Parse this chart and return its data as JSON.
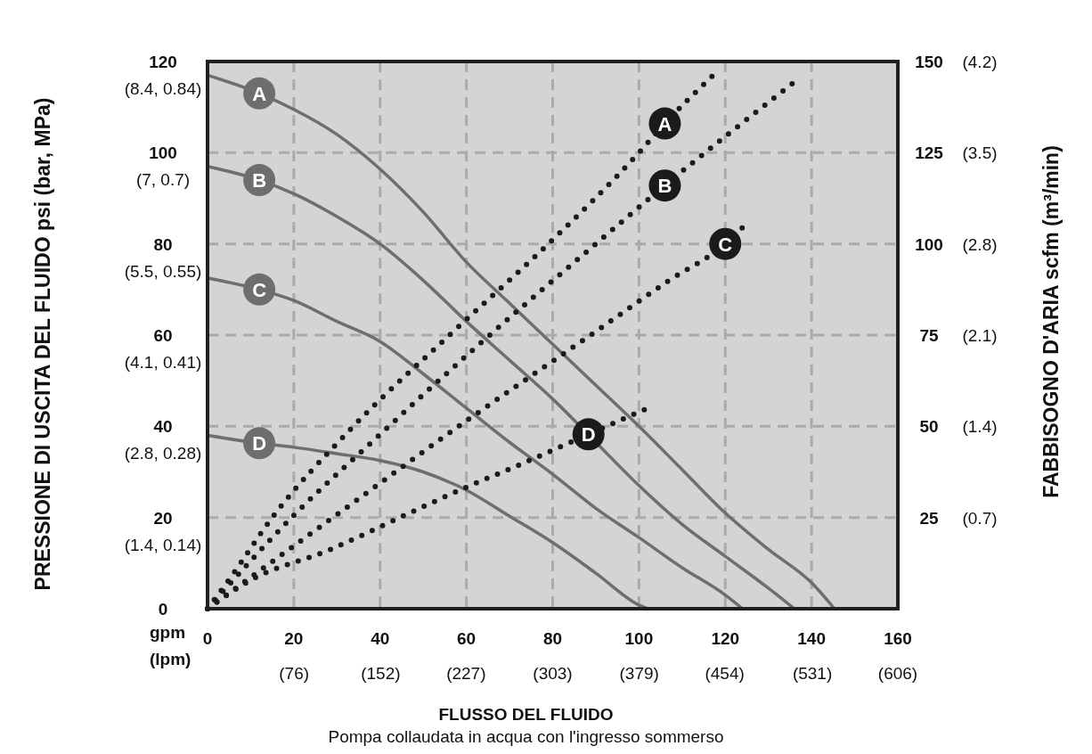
{
  "chart_data": {
    "type": "line",
    "xlabel": "FLUSSO DEL FLUIDO",
    "ylabel": "PRESSIONE DI USCITA DEL FLUIDO psi (bar, MPa)",
    "y2label": "FABBISOGNO D'ARIA scfm (m³/min)",
    "annotations": [
      "Pompa collaudata in acqua con l'ingresso sommerso",
      "gpm\n(lpm)",
      "(1.4, 0.14)",
      "(2.8, 0.28)",
      "(4.1, 0.41)",
      "(5.5, 0.55)",
      "(7, 0.7)",
      "(8.4, 0.84)"
    ],
    "xlim": [
      0,
      160
    ],
    "ylim": [
      0,
      120
    ],
    "y2lim": [
      0,
      150
    ],
    "x2lim": [
      0,
      606
    ],
    "y3lim": [
      0,
      4.2
    ],
    "xticks": [
      0,
      20,
      40,
      60,
      80,
      100,
      120,
      140,
      160
    ],
    "x2ticks": [
      {
        "value": 76,
        "label": "(76)"
      },
      {
        "value": 152,
        "label": "(152)"
      },
      {
        "value": 227,
        "label": "(227)"
      },
      {
        "value": 303,
        "label": "(303)"
      },
      {
        "value": 379,
        "label": "(379)"
      },
      {
        "value": 454,
        "label": "(454)"
      },
      {
        "value": 531,
        "label": "(531)"
      },
      {
        "value": 606,
        "label": "(606)"
      }
    ],
    "yticks": [
      0,
      20,
      40,
      60,
      80,
      100,
      120
    ],
    "y2ticks": [
      25,
      50,
      75,
      100,
      125,
      150
    ],
    "y3ticks": [
      {
        "value": 0.7,
        "label": "(0.7)"
      },
      {
        "value": 1.4,
        "label": "(1.4)"
      },
      {
        "value": 2.1,
        "label": "(2.1)"
      },
      {
        "value": 2.8,
        "label": "(2.8)"
      },
      {
        "value": 3.5,
        "label": "(3.5)"
      },
      {
        "value": 4.2,
        "label": "(4.2)"
      }
    ],
    "grid": true,
    "series": [
      {
        "name": "A",
        "color": "#6e6e70",
        "line_style": "solid",
        "x": [
          0,
          12,
          20,
          30,
          40,
          50,
          60,
          70,
          80,
          90,
          100,
          110,
          120,
          130,
          140,
          145.3
        ],
        "values": [
          117,
          113,
          109.5,
          104,
          96.4,
          87,
          76,
          67,
          58,
          49,
          40,
          30.5,
          21,
          13,
          5.7,
          0
        ]
      },
      {
        "name": "B",
        "color": "#6e6e70",
        "line_style": "solid",
        "x": [
          0,
          12,
          20,
          30,
          40,
          50,
          60,
          70,
          80,
          90,
          100,
          110,
          120,
          130,
          136
        ],
        "values": [
          97,
          94,
          91,
          86,
          80,
          72,
          63,
          54.5,
          46,
          36.5,
          27,
          18.5,
          11.5,
          4.5,
          0
        ]
      },
      {
        "name": "C",
        "color": "#6e6e70",
        "line_style": "solid",
        "x": [
          0,
          12,
          20,
          30,
          40,
          50,
          60,
          70,
          80,
          90,
          100,
          110,
          120,
          124
        ],
        "values": [
          72.5,
          70,
          67.6,
          63,
          58.6,
          51.5,
          44,
          36.5,
          29.5,
          22,
          15.6,
          9,
          3,
          0
        ]
      },
      {
        "name": "D",
        "color": "#6e6e70",
        "line_style": "solid",
        "x": [
          0,
          12,
          20,
          30,
          40,
          50,
          60,
          70,
          80,
          90,
          100,
          102
        ],
        "values": [
          38,
          36.3,
          35.4,
          34,
          32.5,
          30,
          26,
          20.3,
          14.5,
          7.8,
          0.8,
          0
        ]
      },
      {
        "name": "A",
        "color": "#1c1a1b",
        "line_style": "dotted",
        "axis": "y2",
        "x": [
          0,
          5,
          15,
          33,
          57,
          79,
          100,
          106,
          117
        ],
        "values": [
          0,
          8,
          25,
          49,
          76,
          100,
          125,
          133,
          146
        ]
      },
      {
        "name": "B",
        "color": "#1c1a1b",
        "line_style": "dotted",
        "axis": "y2",
        "x": [
          0,
          20,
          39,
          61,
          90,
          106,
          135.6
        ],
        "values": [
          0,
          25.6,
          46.7,
          70.4,
          100,
          116,
          144
        ]
      },
      {
        "name": "C",
        "color": "#1c1a1b",
        "line_style": "dotted",
        "axis": "y2",
        "x": [
          0,
          28.7,
          59.4,
          90,
          107,
          120,
          124
        ],
        "values": [
          0,
          24.7,
          51,
          76,
          90,
          100,
          104.5
        ]
      },
      {
        "name": "D",
        "color": "#1c1a1b",
        "line_style": "dotted",
        "axis": "y2",
        "x": [
          0,
          10,
          28,
          45.3,
          59.4,
          72.6,
          88.3,
          101.3
        ],
        "values": [
          0,
          7.8,
          16,
          25.4,
          33,
          39.6,
          47.8,
          54.6
        ]
      }
    ]
  }
}
